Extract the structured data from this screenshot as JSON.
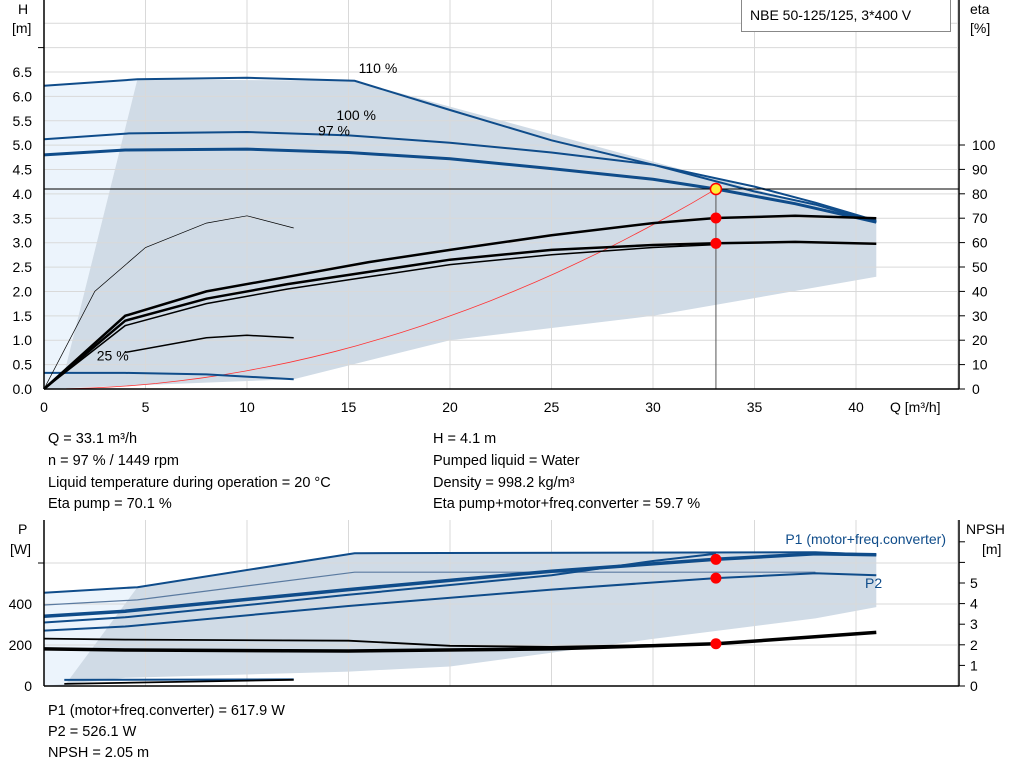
{
  "title": "NBE 50-125/125, 3*400 V",
  "colors": {
    "envelope": "#d0dbe6",
    "envelope_light": "#ecf4fc",
    "curve_blue": "#0f4c8a",
    "curve_black": "#000000",
    "system_curve": "#ff3333",
    "duty_point": "#ff0000",
    "duty_point_top": "#ffee33",
    "grid": "#d9d9d9"
  },
  "chart_data": [
    {
      "type": "line",
      "name_on_chart": "",
      "xlabel": "Q [m³/h]",
      "ylabel_left": "H",
      "ylabel_left_unit": "[m]",
      "ylabel_right": "eta",
      "ylabel_right_unit": "[%]",
      "xlim": [
        0,
        45
      ],
      "ylim_left": [
        0,
        7.9
      ],
      "ylim_right": [
        0,
        158
      ],
      "xticks": [
        0,
        5,
        10,
        15,
        20,
        25,
        30,
        35,
        40
      ],
      "yticks_left": [
        "0.0",
        "0.5",
        "1.0",
        "1.5",
        "2.0",
        "2.5",
        "3.0",
        "3.5",
        "4.0",
        "4.5",
        "5.0",
        "5.5",
        "6.0",
        "6.5"
      ],
      "yticks_right": [
        0,
        10,
        20,
        30,
        40,
        50,
        60,
        70,
        80,
        90,
        100
      ],
      "grid": true,
      "curve_labels": [
        {
          "text": "110 %",
          "q": 15.5,
          "h": 6.48
        },
        {
          "text": "100 %",
          "q": 14.4,
          "h": 5.52
        },
        {
          "text": "97 %",
          "q": 13.5,
          "h": 5.2
        },
        {
          "text": "25 %",
          "q": 2.6,
          "h": 0.58
        }
      ],
      "head_curves": [
        {
          "speed": "110 %",
          "points": [
            [
              0,
              6.22
            ],
            [
              4.6,
              6.35
            ],
            [
              10,
              6.38
            ],
            [
              15.3,
              6.32
            ],
            [
              20,
              5.72
            ],
            [
              25,
              5.1
            ],
            [
              30,
              4.6
            ],
            [
              35,
              4.05
            ],
            [
              38,
              3.78
            ],
            [
              41,
              3.42
            ]
          ]
        },
        {
          "speed": "100 %",
          "points": [
            [
              0,
              5.12
            ],
            [
              4.2,
              5.24
            ],
            [
              10,
              5.27
            ],
            [
              15,
              5.2
            ],
            [
              20,
              5.05
            ],
            [
              25,
              4.85
            ],
            [
              30,
              4.6
            ],
            [
              35,
              4.15
            ],
            [
              38,
              3.82
            ],
            [
              41,
              3.45
            ]
          ]
        },
        {
          "speed": "97 %",
          "points": [
            [
              0,
              4.8
            ],
            [
              4,
              4.9
            ],
            [
              10,
              4.92
            ],
            [
              15,
              4.85
            ],
            [
              20,
              4.72
            ],
            [
              25,
              4.52
            ],
            [
              30,
              4.3
            ],
            [
              33.1,
              4.1
            ],
            [
              37,
              3.8
            ],
            [
              41,
              3.42
            ]
          ]
        },
        {
          "speed": "25 %",
          "points": [
            [
              0,
              0.33
            ],
            [
              4,
              0.33
            ],
            [
              8,
              0.3
            ],
            [
              12.3,
              0.2
            ]
          ]
        }
      ],
      "eta_curves": [
        {
          "points": [
            [
              0,
              0
            ],
            [
              4,
              30
            ],
            [
              8,
              40
            ],
            [
              12,
              46
            ],
            [
              16,
              52
            ],
            [
              20,
              57
            ],
            [
              25,
              63
            ],
            [
              30,
              68
            ],
            [
              33.1,
              70.1
            ],
            [
              37,
              71
            ],
            [
              41,
              70
            ]
          ]
        },
        {
          "points": [
            [
              0,
              0
            ],
            [
              4,
              28
            ],
            [
              8,
              37
            ],
            [
              12,
              43
            ],
            [
              16,
              48
            ],
            [
              20,
              53
            ],
            [
              25,
              57
            ],
            [
              30,
              59
            ],
            [
              33.1,
              59.7
            ],
            [
              37,
              60.3
            ],
            [
              41,
              59.5
            ]
          ]
        },
        {
          "points": [
            [
              0,
              0
            ],
            [
              4,
              26
            ],
            [
              8,
              35
            ],
            [
              12,
              41
            ],
            [
              16,
              46
            ],
            [
              20,
              51
            ],
            [
              25,
              55
            ],
            [
              30,
              58
            ],
            [
              33.1,
              59.2
            ]
          ]
        },
        {
          "points": [
            [
              0,
              0
            ],
            [
              2.5,
              40
            ],
            [
              5,
              58
            ],
            [
              8,
              68
            ],
            [
              10,
              71
            ],
            [
              12.3,
              66
            ]
          ]
        },
        {
          "points": [
            [
              4,
              15
            ],
            [
              8,
              21
            ],
            [
              10,
              22
            ],
            [
              12.3,
              21
            ]
          ]
        }
      ],
      "envelope": [
        [
          0,
          0
        ],
        [
          1,
          0.33
        ],
        [
          4.6,
          6.35
        ],
        [
          15.3,
          6.32
        ],
        [
          41,
          3.42
        ],
        [
          41,
          2.3
        ],
        [
          30,
          1.5
        ],
        [
          20,
          1.0
        ],
        [
          12.3,
          0.2
        ]
      ],
      "system_curve": {
        "h_at_duty": 4.1,
        "q_at_duty": 33.1
      },
      "duty_point": {
        "q": 33.1,
        "h": 4.1,
        "eta_pump": 70.1,
        "eta_total": 59.7
      }
    },
    {
      "type": "line",
      "ylabel_left": "P",
      "ylabel_left_unit": "[W]",
      "ylabel_right": "NPSH",
      "ylabel_right_unit": "[m]",
      "yticks_left": [
        0,
        200,
        400
      ],
      "yticks_right": [
        0,
        1,
        2,
        3,
        4,
        5
      ],
      "series_labels": [
        "P1 (motor+freq.converter)",
        "P2"
      ],
      "power_curves": [
        {
          "points": [
            [
              0,
              455
            ],
            [
              4.6,
              482
            ],
            [
              15.3,
              648
            ],
            [
              38,
              652
            ],
            [
              41,
              640
            ]
          ]
        },
        {
          "points": [
            [
              0,
              395
            ],
            [
              4.6,
              420
            ],
            [
              15.3,
              555
            ],
            [
              38,
              555
            ]
          ]
        },
        {
          "points": [
            [
              0,
              340
            ],
            [
              4,
              365
            ],
            [
              15,
              470
            ],
            [
              25,
              560
            ],
            [
              33.1,
              617.9
            ],
            [
              38,
              645
            ],
            [
              41,
              640
            ]
          ]
        },
        {
          "points": [
            [
              0,
              310
            ],
            [
              4,
              335
            ],
            [
              15,
              445
            ],
            [
              25,
              540
            ],
            [
              30,
              610
            ],
            [
              33.1,
              645
            ]
          ]
        },
        {
          "points": [
            [
              0,
              270
            ],
            [
              4,
              290
            ],
            [
              15,
              390
            ],
            [
              25,
              470
            ],
            [
              33.1,
              526.1
            ],
            [
              38,
              550
            ],
            [
              41,
              540
            ]
          ]
        },
        {
          "points": [
            [
              1,
              30
            ],
            [
              12.3,
              32
            ]
          ]
        }
      ],
      "npsh_curves": [
        {
          "points": [
            [
              0,
              1.8
            ],
            [
              4,
              1.75
            ],
            [
              15,
              1.7
            ],
            [
              25,
              1.8
            ],
            [
              33.1,
              2.05
            ],
            [
              41,
              2.6
            ]
          ]
        },
        {
          "points": [
            [
              0,
              2.3
            ],
            [
              4,
              2.25
            ],
            [
              15,
              2.2
            ],
            [
              20,
              1.95
            ],
            [
              25,
              1.9
            ],
            [
              33.1,
              2.05
            ]
          ]
        },
        {
          "points": [
            [
              1,
              0.1
            ],
            [
              12.3,
              0.3
            ]
          ]
        }
      ],
      "envelope": [
        [
          0,
          0
        ],
        [
          1,
          0.0
        ],
        [
          4.6,
          482
        ],
        [
          15.3,
          648
        ],
        [
          41,
          645
        ],
        [
          41,
          385
        ],
        [
          38,
          330
        ],
        [
          30,
          230
        ],
        [
          20,
          95
        ],
        [
          15,
          70
        ],
        [
          4,
          40
        ]
      ],
      "duty_point": {
        "q": 33.1,
        "p1": 617.9,
        "p2": 526.1,
        "npsh": 2.05
      }
    }
  ],
  "info_top": {
    "left": [
      "Q = 33.1 m³/h",
      "n = 97 % / 1449 rpm",
      "Liquid temperature during operation = 20 °C",
      "Eta pump = 70.1 %"
    ],
    "right": [
      "H = 4.1 m",
      "Pumped liquid = Water",
      "Density = 998.2 kg/m³",
      "Eta pump+motor+freq.converter = 59.7 %"
    ]
  },
  "info_bottom": [
    "P1 (motor+freq.converter) = 617.9 W",
    "P2 = 526.1 W",
    "NPSH = 2.05 m"
  ]
}
